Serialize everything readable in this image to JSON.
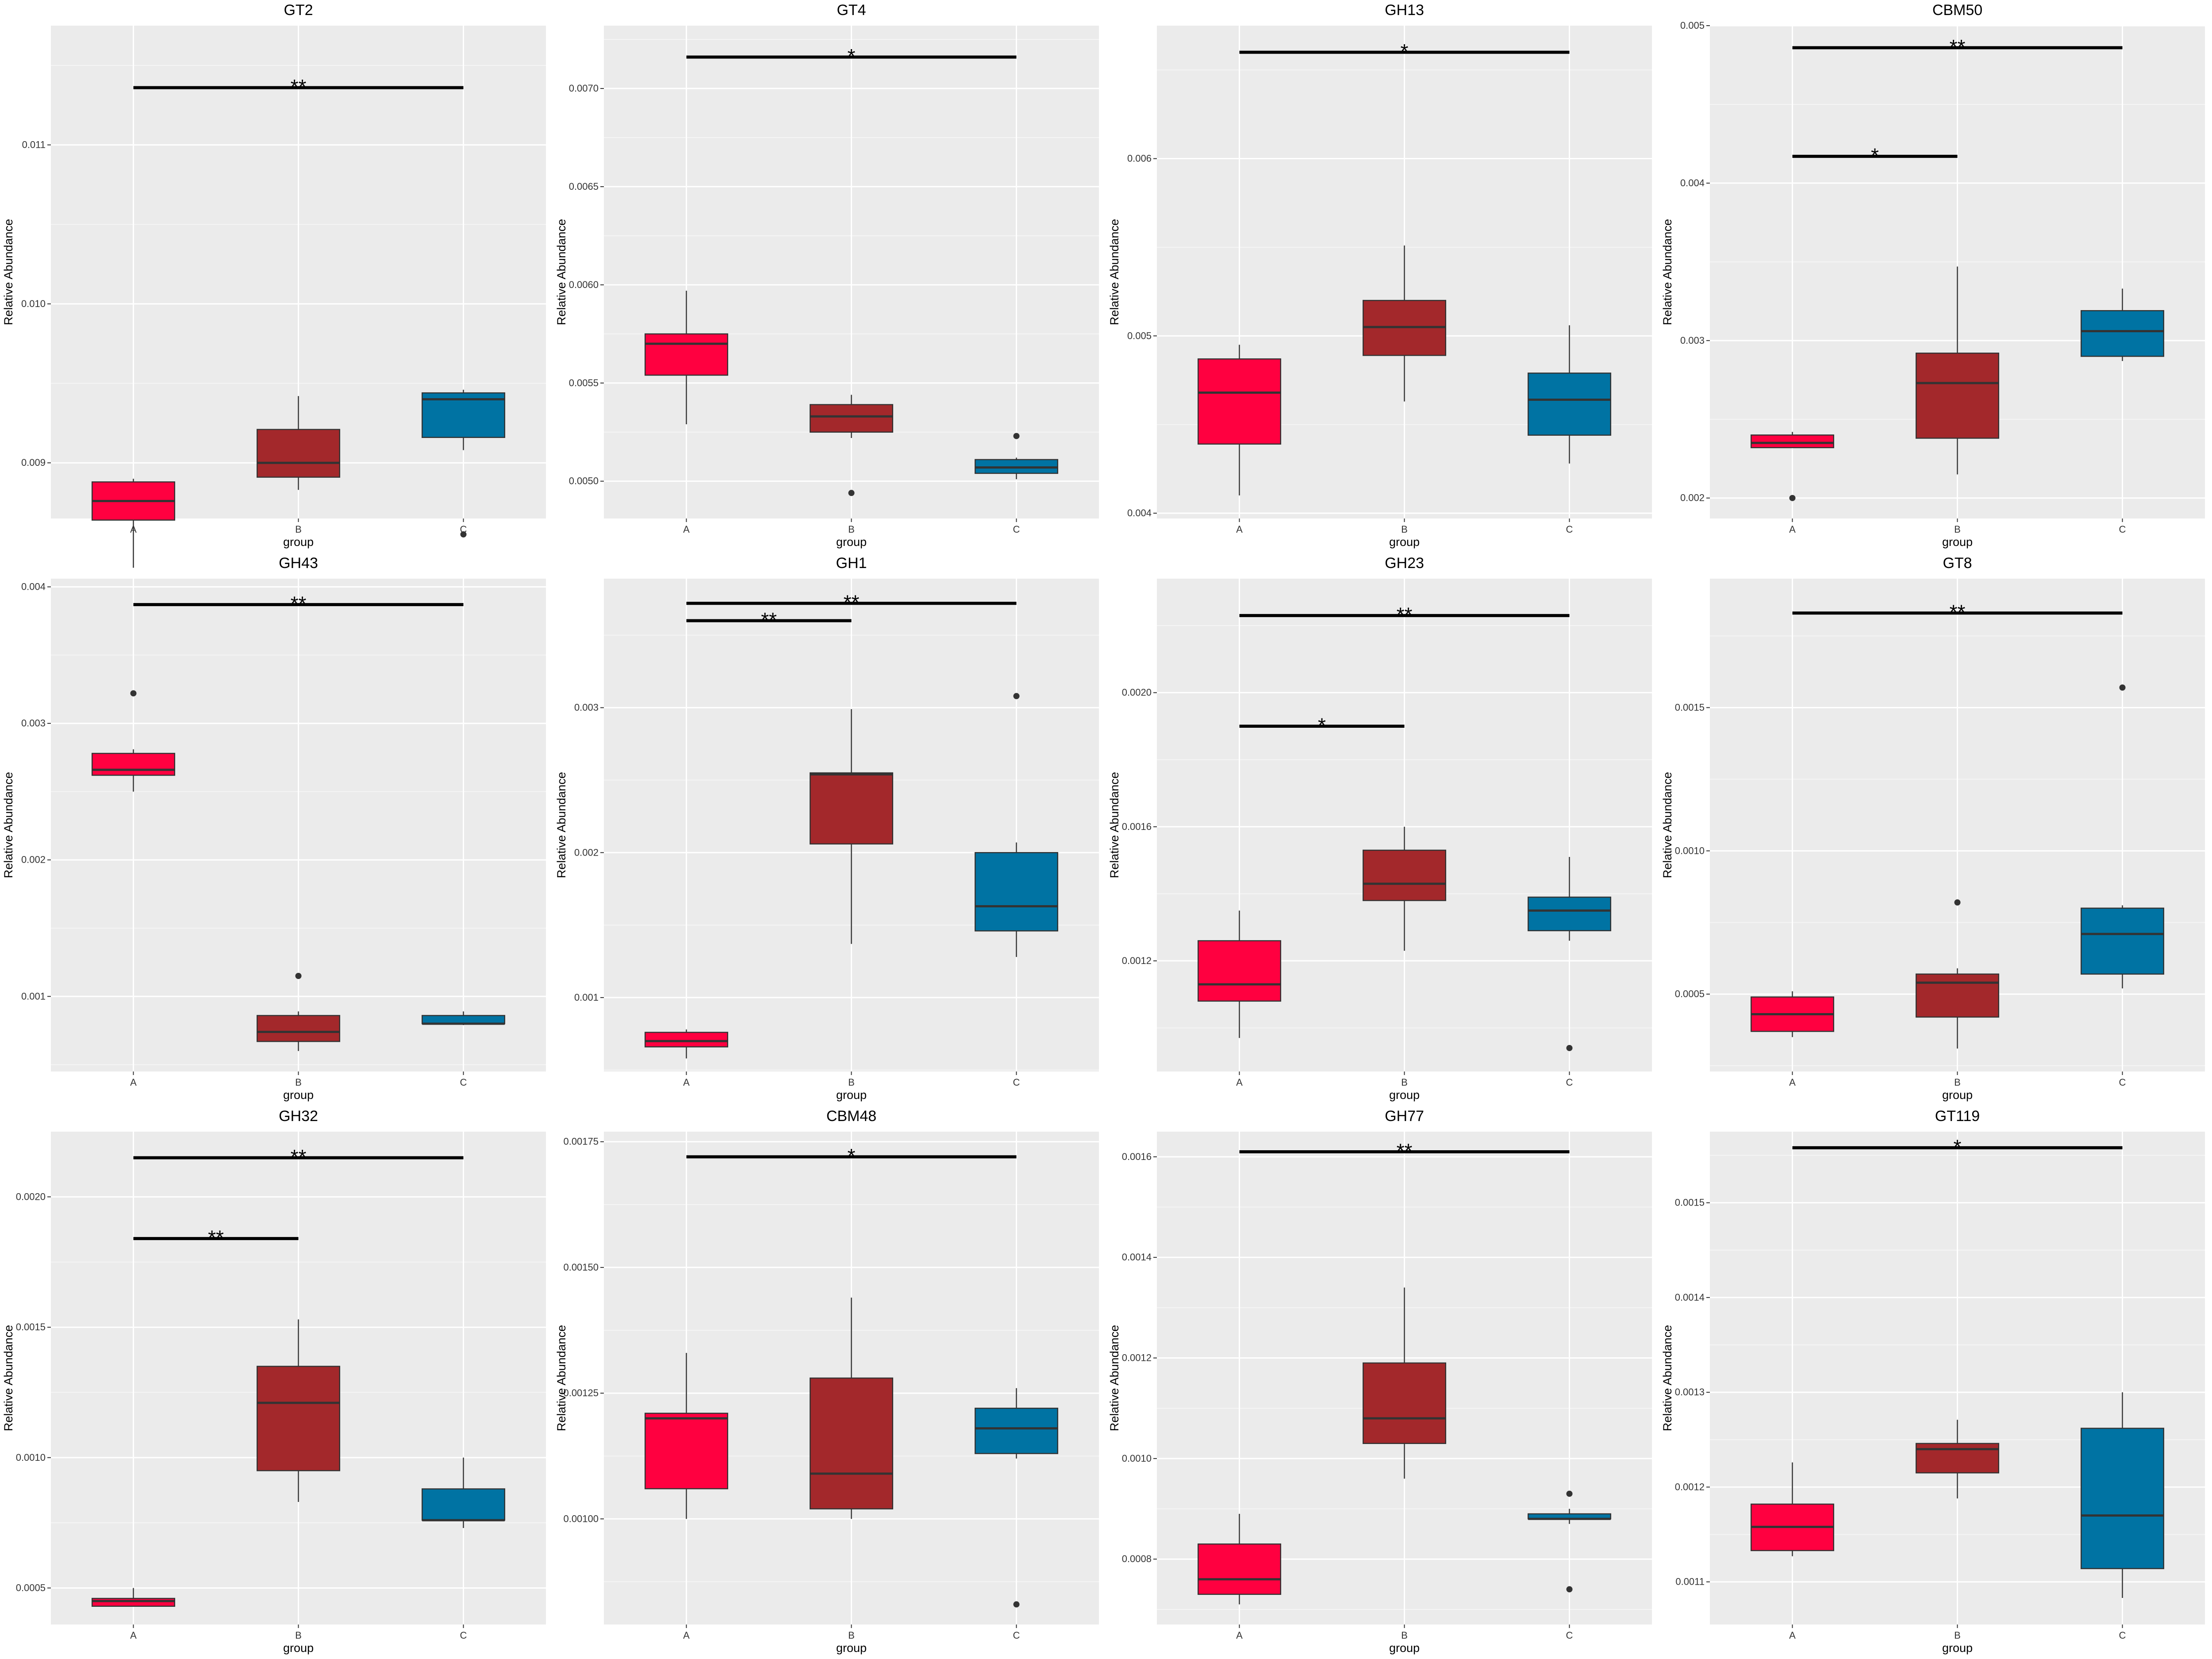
{
  "colors": {
    "A": "#ff0040",
    "B": "#a3282b",
    "C": "#0073a3",
    "panel_bg": "#ebebeb",
    "grid_major": "#ffffff",
    "grid_minor": "#f5f5f5"
  },
  "chart_data": [
    {
      "type": "boxplot",
      "title": "GT2",
      "xlabel": "group",
      "ylabel": "Relative Abundance",
      "categories": [
        "A",
        "B",
        "C"
      ],
      "ylim": [
        0.00865,
        0.01175
      ],
      "yticks": [
        0.009,
        0.01,
        0.011
      ],
      "ytick_labels": [
        "0.009",
        "0.010",
        "0.011"
      ],
      "boxes": [
        {
          "min": 0.00834,
          "q1": 0.00864,
          "median": 0.00876,
          "q3": 0.00888,
          "max": 0.0089,
          "outliers": []
        },
        {
          "min": 0.00883,
          "q1": 0.00891,
          "median": 0.009,
          "q3": 0.00921,
          "max": 0.00942,
          "outliers": []
        },
        {
          "min": 0.00908,
          "q1": 0.00916,
          "median": 0.0094,
          "q3": 0.00944,
          "max": 0.00946,
          "outliers": [
            0.00855
          ]
        }
      ],
      "significance": [
        {
          "from": "A",
          "to": "C",
          "label": "**",
          "y": 0.01136
        }
      ]
    },
    {
      "type": "boxplot",
      "title": "GT4",
      "xlabel": "group",
      "ylabel": "Relative Abundance",
      "categories": [
        "A",
        "B",
        "C"
      ],
      "ylim": [
        0.00481,
        0.00732
      ],
      "yticks": [
        0.005,
        0.0055,
        0.006,
        0.0065,
        0.007
      ],
      "ytick_labels": [
        "0.0050",
        "0.0055",
        "0.0060",
        "0.0065",
        "0.0070"
      ],
      "boxes": [
        {
          "min": 0.00529,
          "q1": 0.00554,
          "median": 0.0057,
          "q3": 0.00575,
          "max": 0.00597,
          "outliers": []
        },
        {
          "min": 0.00522,
          "q1": 0.00525,
          "median": 0.00533,
          "q3": 0.00539,
          "max": 0.00544,
          "outliers": [
            0.00494
          ]
        },
        {
          "min": 0.00501,
          "q1": 0.00504,
          "median": 0.00507,
          "q3": 0.00511,
          "max": 0.00512,
          "outliers": [
            0.00523
          ]
        }
      ],
      "significance": [
        {
          "from": "A",
          "to": "C",
          "label": "*",
          "y": 0.00716
        }
      ]
    },
    {
      "type": "boxplot",
      "title": "GH13",
      "xlabel": "group",
      "ylabel": "Relative Abundance",
      "categories": [
        "A",
        "B",
        "C"
      ],
      "ylim": [
        0.00397,
        0.00675
      ],
      "yticks": [
        0.004,
        0.005,
        0.006
      ],
      "ytick_labels": [
        "0.004",
        "0.005",
        "0.006"
      ],
      "boxes": [
        {
          "min": 0.0041,
          "q1": 0.00439,
          "median": 0.00468,
          "q3": 0.00487,
          "max": 0.00495,
          "outliers": []
        },
        {
          "min": 0.00463,
          "q1": 0.00489,
          "median": 0.00505,
          "q3": 0.0052,
          "max": 0.00551,
          "outliers": []
        },
        {
          "min": 0.00428,
          "q1": 0.00444,
          "median": 0.00464,
          "q3": 0.00479,
          "max": 0.00506,
          "outliers": []
        }
      ],
      "significance": [
        {
          "from": "A",
          "to": "C",
          "label": "*",
          "y": 0.0066
        }
      ]
    },
    {
      "type": "boxplot",
      "title": "CBM50",
      "xlabel": "group",
      "ylabel": "Relative Abundance",
      "categories": [
        "A",
        "B",
        "C"
      ],
      "ylim": [
        0.00187,
        0.005
      ],
      "yticks": [
        0.002,
        0.003,
        0.004,
        0.005
      ],
      "ytick_labels": [
        "0.002",
        "0.003",
        "0.004",
        "0.005"
      ],
      "boxes": [
        {
          "min": 0.00232,
          "q1": 0.00232,
          "median": 0.00235,
          "q3": 0.0024,
          "max": 0.00242,
          "outliers": [
            0.002
          ]
        },
        {
          "min": 0.00215,
          "q1": 0.00238,
          "median": 0.00273,
          "q3": 0.00292,
          "max": 0.00347,
          "outliers": []
        },
        {
          "min": 0.00287,
          "q1": 0.0029,
          "median": 0.00306,
          "q3": 0.00319,
          "max": 0.00333,
          "outliers": []
        }
      ],
      "significance": [
        {
          "from": "A",
          "to": "C",
          "label": "**",
          "y": 0.00486
        },
        {
          "from": "A",
          "to": "B",
          "label": "*",
          "y": 0.00417
        }
      ]
    },
    {
      "type": "boxplot",
      "title": "GH43",
      "xlabel": "group",
      "ylabel": "Relative Abundance",
      "categories": [
        "A",
        "B",
        "C"
      ],
      "ylim": [
        0.00045,
        0.00406
      ],
      "yticks": [
        0.001,
        0.002,
        0.003,
        0.004
      ],
      "ytick_labels": [
        "0.001",
        "0.002",
        "0.003",
        "0.004"
      ],
      "boxes": [
        {
          "min": 0.0025,
          "q1": 0.00262,
          "median": 0.00266,
          "q3": 0.00278,
          "max": 0.00281,
          "outliers": [
            0.00322
          ]
        },
        {
          "min": 0.0006,
          "q1": 0.00067,
          "median": 0.00074,
          "q3": 0.00086,
          "max": 0.00089,
          "outliers": [
            0.00115
          ]
        },
        {
          "min": 0.00079,
          "q1": 0.0008,
          "median": 0.0008,
          "q3": 0.00086,
          "max": 0.00089,
          "outliers": []
        }
      ],
      "significance": [
        {
          "from": "A",
          "to": "C",
          "label": "**",
          "y": 0.00387
        }
      ]
    },
    {
      "type": "boxplot",
      "title": "GH1",
      "xlabel": "group",
      "ylabel": "Relative Abundance",
      "categories": [
        "A",
        "B",
        "C"
      ],
      "ylim": [
        0.00049,
        0.00389
      ],
      "yticks": [
        0.001,
        0.002,
        0.003
      ],
      "ytick_labels": [
        "0.001",
        "0.002",
        "0.003"
      ],
      "boxes": [
        {
          "min": 0.00058,
          "q1": 0.00066,
          "median": 0.0007,
          "q3": 0.00076,
          "max": 0.00078,
          "outliers": []
        },
        {
          "min": 0.00137,
          "q1": 0.00206,
          "median": 0.00254,
          "q3": 0.00255,
          "max": 0.00299,
          "outliers": []
        },
        {
          "min": 0.00128,
          "q1": 0.00146,
          "median": 0.00163,
          "q3": 0.002,
          "max": 0.00207,
          "outliers": [
            0.00308
          ]
        }
      ],
      "significance": [
        {
          "from": "A",
          "to": "C",
          "label": "**",
          "y": 0.00372
        },
        {
          "from": "A",
          "to": "B",
          "label": "**",
          "y": 0.0036
        }
      ]
    },
    {
      "type": "boxplot",
      "title": "GH23",
      "xlabel": "group",
      "ylabel": "Relative Abundance",
      "categories": [
        "A",
        "B",
        "C"
      ],
      "ylim": [
        0.00087,
        0.00234
      ],
      "yticks": [
        0.0012,
        0.0016,
        0.002
      ],
      "ytick_labels": [
        "0.0012",
        "0.0016",
        "0.0020"
      ],
      "boxes": [
        {
          "min": 0.00097,
          "q1": 0.00108,
          "median": 0.00113,
          "q3": 0.00126,
          "max": 0.00135,
          "outliers": []
        },
        {
          "min": 0.00123,
          "q1": 0.00138,
          "median": 0.00143,
          "q3": 0.00153,
          "max": 0.0016,
          "outliers": []
        },
        {
          "min": 0.00126,
          "q1": 0.00129,
          "median": 0.00135,
          "q3": 0.00139,
          "max": 0.00151,
          "outliers": [
            0.00094
          ]
        }
      ],
      "significance": [
        {
          "from": "A",
          "to": "C",
          "label": "**",
          "y": 0.00223
        },
        {
          "from": "A",
          "to": "B",
          "label": "*",
          "y": 0.0019
        }
      ]
    },
    {
      "type": "boxplot",
      "title": "GT8",
      "xlabel": "group",
      "ylabel": "Relative Abundance",
      "categories": [
        "A",
        "B",
        "C"
      ],
      "ylim": [
        0.00023,
        0.00195
      ],
      "yticks": [
        0.0005,
        0.001,
        0.0015
      ],
      "ytick_labels": [
        "0.0005",
        "0.0010",
        "0.0015"
      ],
      "boxes": [
        {
          "min": 0.00035,
          "q1": 0.00037,
          "median": 0.00043,
          "q3": 0.00049,
          "max": 0.00051,
          "outliers": []
        },
        {
          "min": 0.00031,
          "q1": 0.00042,
          "median": 0.00054,
          "q3": 0.00057,
          "max": 0.00059,
          "outliers": [
            0.00082
          ]
        },
        {
          "min": 0.00052,
          "q1": 0.00057,
          "median": 0.00071,
          "q3": 0.0008,
          "max": 0.00081,
          "outliers": [
            0.00157
          ]
        }
      ],
      "significance": [
        {
          "from": "A",
          "to": "C",
          "label": "**",
          "y": 0.00183
        }
      ]
    },
    {
      "type": "boxplot",
      "title": "GH32",
      "xlabel": "group",
      "ylabel": "Relative Abundance",
      "categories": [
        "A",
        "B",
        "C"
      ],
      "ylim": [
        0.00036,
        0.00225
      ],
      "yticks": [
        0.0005,
        0.001,
        0.0015,
        0.002
      ],
      "ytick_labels": [
        "0.0005",
        "0.0010",
        "0.0015",
        "0.0020"
      ],
      "boxes": [
        {
          "min": 0.00043,
          "q1": 0.00043,
          "median": 0.00045,
          "q3": 0.00046,
          "max": 0.0005,
          "outliers": []
        },
        {
          "min": 0.00083,
          "q1": 0.00095,
          "median": 0.00121,
          "q3": 0.00135,
          "max": 0.00153,
          "outliers": []
        },
        {
          "min": 0.00073,
          "q1": 0.00076,
          "median": 0.00076,
          "q3": 0.00088,
          "max": 0.001,
          "outliers": []
        }
      ],
      "significance": [
        {
          "from": "A",
          "to": "C",
          "label": "**",
          "y": 0.00215
        },
        {
          "from": "A",
          "to": "B",
          "label": "**",
          "y": 0.00184
        }
      ]
    },
    {
      "type": "boxplot",
      "title": "CBM48",
      "xlabel": "group",
      "ylabel": "Relative Abundance",
      "categories": [
        "A",
        "B",
        "C"
      ],
      "ylim": [
        0.00079,
        0.00177
      ],
      "yticks": [
        0.001,
        0.00125,
        0.0015,
        0.00175
      ],
      "ytick_labels": [
        "0.00100",
        "0.00125",
        "0.00150",
        "0.00175"
      ],
      "boxes": [
        {
          "min": 0.001,
          "q1": 0.00106,
          "median": 0.0012,
          "q3": 0.00121,
          "max": 0.00133,
          "outliers": []
        },
        {
          "min": 0.001,
          "q1": 0.00102,
          "median": 0.00109,
          "q3": 0.00128,
          "max": 0.00144,
          "outliers": []
        },
        {
          "min": 0.00112,
          "q1": 0.00113,
          "median": 0.00118,
          "q3": 0.00122,
          "max": 0.00126,
          "outliers": [
            0.00083
          ]
        }
      ],
      "significance": [
        {
          "from": "A",
          "to": "C",
          "label": "*",
          "y": 0.00172
        }
      ]
    },
    {
      "type": "boxplot",
      "title": "GH77",
      "xlabel": "group",
      "ylabel": "Relative Abundance",
      "categories": [
        "A",
        "B",
        "C"
      ],
      "ylim": [
        0.00067,
        0.00165
      ],
      "yticks": [
        0.0008,
        0.001,
        0.0012,
        0.0014,
        0.0016
      ],
      "ytick_labels": [
        "0.0008",
        "0.0010",
        "0.0012",
        "0.0014",
        "0.0016"
      ],
      "boxes": [
        {
          "min": 0.00071,
          "q1": 0.00073,
          "median": 0.00076,
          "q3": 0.00083,
          "max": 0.00089,
          "outliers": []
        },
        {
          "min": 0.00096,
          "q1": 0.00103,
          "median": 0.00108,
          "q3": 0.00119,
          "max": 0.00134,
          "outliers": []
        },
        {
          "min": 0.00087,
          "q1": 0.00088,
          "median": 0.00088,
          "q3": 0.00089,
          "max": 0.0009,
          "outliers": [
            0.00093,
            0.00074
          ]
        }
      ],
      "significance": [
        {
          "from": "A",
          "to": "C",
          "label": "**",
          "y": 0.00161
        }
      ]
    },
    {
      "type": "boxplot",
      "title": "GT119",
      "xlabel": "group",
      "ylabel": "Relative Abundance",
      "categories": [
        "A",
        "B",
        "C"
      ],
      "ylim": [
        0.001055,
        0.001575
      ],
      "yticks": [
        0.0011,
        0.0012,
        0.0013,
        0.0014,
        0.0015
      ],
      "ytick_labels": [
        "0.0011",
        "0.0012",
        "0.0013",
        "0.0014",
        "0.0015"
      ],
      "boxes": [
        {
          "min": 0.001127,
          "q1": 0.001133,
          "median": 0.001158,
          "q3": 0.001182,
          "max": 0.001226,
          "outliers": []
        },
        {
          "min": 0.001188,
          "q1": 0.001215,
          "median": 0.00124,
          "q3": 0.001246,
          "max": 0.001271,
          "outliers": []
        },
        {
          "min": 0.001083,
          "q1": 0.001114,
          "median": 0.00117,
          "q3": 0.001262,
          "max": 0.0013,
          "outliers": []
        }
      ],
      "significance": [
        {
          "from": "A",
          "to": "C",
          "label": "*",
          "y": 0.001558
        }
      ]
    }
  ]
}
